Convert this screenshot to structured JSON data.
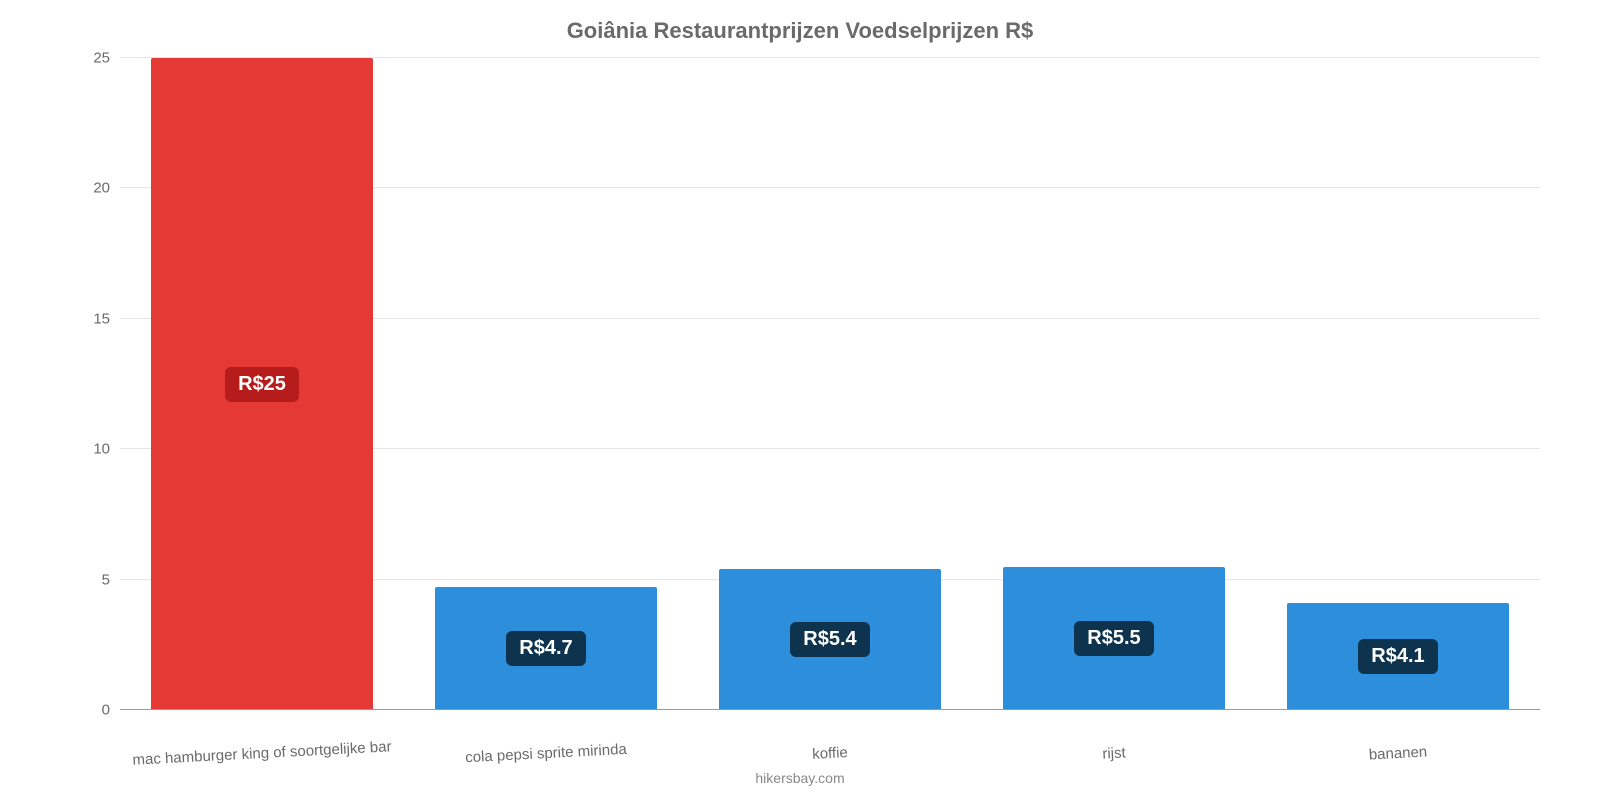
{
  "chart": {
    "type": "bar",
    "title": "Goiânia Restaurantprijzen Voedselprijzen R$",
    "title_color": "#6a6a6a",
    "title_fontsize": 22,
    "background_color": "#ffffff",
    "grid_color": "#e6e6e6",
    "axis_color": "#999999",
    "label_color": "#6a6a6a",
    "x_label_fontsize": 15,
    "y_label_fontsize": 15,
    "x_label_rotation_deg": -3,
    "ylim": [
      0,
      25
    ],
    "yticks": [
      0,
      5,
      10,
      15,
      20,
      25
    ],
    "bar_width_ratio": 0.78,
    "bars": [
      {
        "category": "mac hamburger king of soortgelijke bar",
        "value": 25,
        "display": "R$25",
        "color": "#e53935",
        "badge_bg": "#b71c1c"
      },
      {
        "category": "cola pepsi sprite mirinda",
        "value": 4.7,
        "display": "R$4.7",
        "color": "#2d8edb",
        "badge_bg": "#0d334f"
      },
      {
        "category": "koffie",
        "value": 5.4,
        "display": "R$5.4",
        "color": "#2d8edb",
        "badge_bg": "#0d334f"
      },
      {
        "category": "rijst",
        "value": 5.5,
        "display": "R$5.5",
        "color": "#2d8edb",
        "badge_bg": "#0d334f"
      },
      {
        "category": "bananen",
        "value": 4.1,
        "display": "R$4.1",
        "color": "#2d8edb",
        "badge_bg": "#0d334f"
      }
    ],
    "value_badge": {
      "fontsize": 20,
      "text_color": "#ffffff",
      "radius": 6
    },
    "attribution": "hikersbay.com"
  }
}
